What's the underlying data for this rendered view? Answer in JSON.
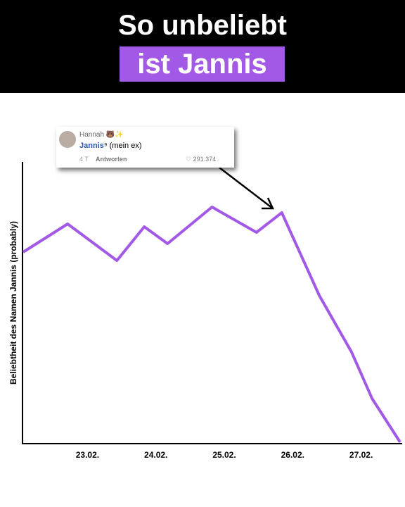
{
  "chart_data": {
    "type": "line",
    "title": "So unbeliebt",
    "subtitle": "ist Jannis",
    "y_label": "Beliebtheit des Namen Jannis (probably)",
    "x": [
      22.06,
      22.71,
      23.43,
      23.83,
      24.17,
      24.82,
      25.47,
      25.84,
      26.39,
      26.86,
      27.16,
      27.57
    ],
    "values": [
      68,
      78,
      65,
      77,
      71,
      84,
      75,
      82,
      52.5,
      32.5,
      16,
      0.5
    ],
    "color": "#a259e6",
    "xlim": [
      22.05,
      27.6
    ],
    "ylim": [
      0,
      100
    ],
    "xticks": [
      {
        "value": 23,
        "label": "23.02."
      },
      {
        "value": 24,
        "label": "24.02."
      },
      {
        "value": 25,
        "label": "25.02."
      },
      {
        "value": 26,
        "label": "26.02."
      },
      {
        "value": 27,
        "label": "27.02."
      }
    ],
    "annotation": {
      "user": "Hannah 🐻✨",
      "mention": "Jannis",
      "text": "(mein ex)",
      "age": "4 T",
      "reply": "Antworten",
      "likes": "291.374"
    }
  }
}
